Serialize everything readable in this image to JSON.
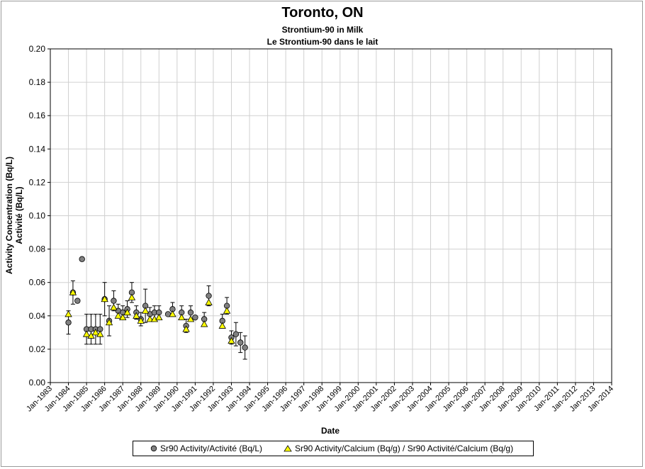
{
  "title": "Toronto, ON",
  "subtitle_en": "Strontium-90 in Milk",
  "subtitle_fr": "Le Strontium-90 dans le lait",
  "chart_data": {
    "type": "scatter",
    "xlabel": "Date",
    "ylabel_line1": "Activity Concentration (Bq/L)",
    "ylabel_line2": "Activité (Bq/L)",
    "xlim": [
      "1983-01",
      "2014-01"
    ],
    "ylim": [
      0,
      0.2
    ],
    "yticks": [
      "0.00",
      "0.02",
      "0.04",
      "0.06",
      "0.08",
      "0.10",
      "0.12",
      "0.14",
      "0.16",
      "0.18",
      "0.20"
    ],
    "xticks": [
      "Jan-1983",
      "Jan-1984",
      "Jan-1985",
      "Jan-1986",
      "Jan-1987",
      "Jan-1988",
      "Jan-1989",
      "Jan-1990",
      "Jan-1991",
      "Jan-1992",
      "Jan-1993",
      "Jan-1994",
      "Jan-1995",
      "Jan-1996",
      "Jan-1997",
      "Jan-1998",
      "Jan-1999",
      "Jan-2000",
      "Jan-2001",
      "Jan-2002",
      "Jan-2003",
      "Jan-2004",
      "Jan-2005",
      "Jan-2006",
      "Jan-2007",
      "Jan-2008",
      "Jan-2009",
      "Jan-2010",
      "Jan-2011",
      "Jan-2012",
      "Jan-2013",
      "Jan-2014"
    ],
    "grid": true,
    "legend_position": "bottom",
    "series": [
      {
        "name": "Sr90 Activity/Activité (Bq/L)",
        "marker": "circle",
        "color": "#808080",
        "points": [
          {
            "x": "1984-01",
            "y": 0.036,
            "err": 0.007
          },
          {
            "x": "1984-04",
            "y": 0.054,
            "err": 0.007
          },
          {
            "x": "1984-07",
            "y": 0.049
          },
          {
            "x": "1984-10",
            "y": 0.074
          },
          {
            "x": "1985-01",
            "y": 0.032,
            "err": 0.009
          },
          {
            "x": "1985-04",
            "y": 0.032,
            "err": 0.009
          },
          {
            "x": "1985-07",
            "y": 0.032,
            "err": 0.009
          },
          {
            "x": "1985-10",
            "y": 0.032,
            "err": 0.009
          },
          {
            "x": "1986-01",
            "y": 0.05,
            "err": 0.01
          },
          {
            "x": "1986-04",
            "y": 0.037,
            "err": 0.009
          },
          {
            "x": "1986-07",
            "y": 0.049,
            "err": 0.006
          },
          {
            "x": "1986-10",
            "y": 0.043,
            "err": 0.004
          },
          {
            "x": "1987-01",
            "y": 0.042,
            "err": 0.004
          },
          {
            "x": "1987-04",
            "y": 0.044,
            "err": 0.005
          },
          {
            "x": "1987-07",
            "y": 0.054,
            "err": 0.006
          },
          {
            "x": "1987-10",
            "y": 0.042,
            "err": 0.004
          },
          {
            "x": "1988-01",
            "y": 0.038,
            "err": 0.004
          },
          {
            "x": "1988-04",
            "y": 0.046,
            "err": 0.01
          },
          {
            "x": "1988-07",
            "y": 0.041,
            "err": 0.004
          },
          {
            "x": "1988-10",
            "y": 0.042,
            "err": 0.004
          },
          {
            "x": "1989-01",
            "y": 0.042,
            "err": 0.004
          },
          {
            "x": "1989-07",
            "y": 0.041
          },
          {
            "x": "1989-10",
            "y": 0.044,
            "err": 0.004
          },
          {
            "x": "1990-04",
            "y": 0.042,
            "err": 0.004
          },
          {
            "x": "1990-07",
            "y": 0.034,
            "err": 0.004
          },
          {
            "x": "1990-10",
            "y": 0.042,
            "err": 0.004
          },
          {
            "x": "1991-01",
            "y": 0.039
          },
          {
            "x": "1991-07",
            "y": 0.038,
            "err": 0.004
          },
          {
            "x": "1991-10",
            "y": 0.052,
            "err": 0.006
          },
          {
            "x": "1992-07",
            "y": 0.037,
            "err": 0.004
          },
          {
            "x": "1992-10",
            "y": 0.046,
            "err": 0.005
          },
          {
            "x": "1993-01",
            "y": 0.027,
            "err": 0.004
          },
          {
            "x": "1993-04",
            "y": 0.029,
            "err": 0.007
          },
          {
            "x": "1993-07",
            "y": 0.024,
            "err": 0.006
          },
          {
            "x": "1993-10",
            "y": 0.021,
            "err": 0.007
          }
        ]
      },
      {
        "name": "Sr90 Activity/Calcium (Bq/g) / Sr90 Activité/Calcium (Bq/g)",
        "marker": "triangle",
        "color": "#ffff00",
        "points": [
          {
            "x": "1984-01",
            "y": 0.041
          },
          {
            "x": "1984-04",
            "y": 0.054
          },
          {
            "x": "1985-01",
            "y": 0.029
          },
          {
            "x": "1985-04",
            "y": 0.028
          },
          {
            "x": "1985-07",
            "y": 0.03
          },
          {
            "x": "1985-10",
            "y": 0.029
          },
          {
            "x": "1986-01",
            "y": 0.05
          },
          {
            "x": "1986-04",
            "y": 0.036
          },
          {
            "x": "1986-07",
            "y": 0.045
          },
          {
            "x": "1986-10",
            "y": 0.04
          },
          {
            "x": "1987-01",
            "y": 0.039
          },
          {
            "x": "1987-04",
            "y": 0.042
          },
          {
            "x": "1987-07",
            "y": 0.051
          },
          {
            "x": "1987-10",
            "y": 0.04
          },
          {
            "x": "1988-01",
            "y": 0.037
          },
          {
            "x": "1988-04",
            "y": 0.043
          },
          {
            "x": "1988-07",
            "y": 0.038
          },
          {
            "x": "1988-10",
            "y": 0.038
          },
          {
            "x": "1989-01",
            "y": 0.039
          },
          {
            "x": "1989-10",
            "y": 0.041
          },
          {
            "x": "1990-04",
            "y": 0.039
          },
          {
            "x": "1990-07",
            "y": 0.032
          },
          {
            "x": "1990-10",
            "y": 0.038
          },
          {
            "x": "1991-07",
            "y": 0.035
          },
          {
            "x": "1991-10",
            "y": 0.048
          },
          {
            "x": "1992-07",
            "y": 0.034
          },
          {
            "x": "1992-10",
            "y": 0.043
          },
          {
            "x": "1993-01",
            "y": 0.025
          }
        ]
      }
    ]
  }
}
